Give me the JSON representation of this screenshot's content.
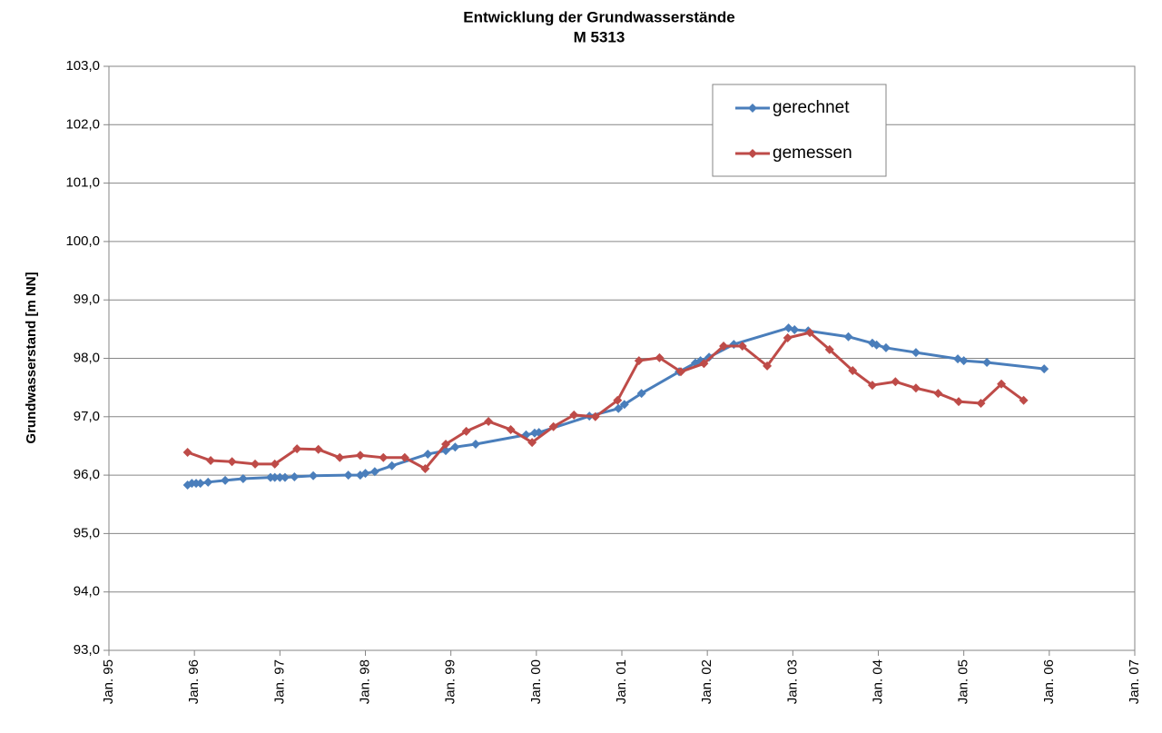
{
  "chart_data": {
    "type": "line",
    "title": "Entwicklung der Grundwasserstände",
    "subtitle": "M 5313",
    "y_label": "Grundwasserstand [m NN]",
    "xlim": [
      1995,
      2007
    ],
    "ylim": [
      93,
      103
    ],
    "grid": true,
    "legend": "upper-right",
    "yticks": [
      {
        "value": 93,
        "label": "93,0"
      },
      {
        "value": 94,
        "label": "94,0"
      },
      {
        "value": 95,
        "label": "95,0"
      },
      {
        "value": 96,
        "label": "96,0"
      },
      {
        "value": 97,
        "label": "97,0"
      },
      {
        "value": 98,
        "label": "98,0"
      },
      {
        "value": 99,
        "label": "99,0"
      },
      {
        "value": 100,
        "label": "100,0"
      },
      {
        "value": 101,
        "label": "101,0"
      },
      {
        "value": 102,
        "label": "102,0"
      },
      {
        "value": 103,
        "label": "103,0"
      }
    ],
    "xticks": [
      {
        "value": 1995,
        "label": "Jan. 95"
      },
      {
        "value": 1996,
        "label": "Jan. 96"
      },
      {
        "value": 1997,
        "label": "Jan. 97"
      },
      {
        "value": 1998,
        "label": "Jan. 98"
      },
      {
        "value": 1999,
        "label": "Jan. 99"
      },
      {
        "value": 2000,
        "label": "Jan. 00"
      },
      {
        "value": 2001,
        "label": "Jan. 01"
      },
      {
        "value": 2002,
        "label": "Jan. 02"
      },
      {
        "value": 2003,
        "label": "Jan. 03"
      },
      {
        "value": 2004,
        "label": "Jan. 04"
      },
      {
        "value": 2005,
        "label": "Jan. 05"
      },
      {
        "value": 2006,
        "label": "Jan. 06"
      },
      {
        "value": 2007,
        "label": "Jan. 07"
      }
    ],
    "series": [
      {
        "name": "gerechnet",
        "color": "#4a7ebb",
        "x": [
          1995.92,
          1995.97,
          1996.02,
          1996.07,
          1996.16,
          1996.36,
          1996.57,
          1996.89,
          1996.94,
          1997.0,
          1997.06,
          1997.17,
          1997.39,
          1997.8,
          1997.94,
          1998.0,
          1998.11,
          1998.31,
          1998.73,
          1998.94,
          1999.05,
          1999.29,
          1999.88,
          1999.98,
          2000.03,
          2000.62,
          2000.96,
          2001.03,
          2001.23,
          2001.67,
          2001.86,
          2001.92,
          2002.02,
          2002.31,
          2002.95,
          2003.02,
          2003.18,
          2003.65,
          2003.93,
          2003.98,
          2004.09,
          2004.44,
          2004.93,
          2005.0,
          2005.27,
          2005.94
        ],
        "values": [
          95.83,
          95.86,
          95.86,
          95.86,
          95.88,
          95.91,
          95.94,
          95.96,
          95.96,
          95.96,
          95.96,
          95.97,
          95.99,
          96.0,
          96.0,
          96.03,
          96.06,
          96.16,
          96.36,
          96.42,
          96.48,
          96.53,
          96.69,
          96.72,
          96.73,
          97.01,
          97.14,
          97.21,
          97.4,
          97.77,
          97.92,
          97.96,
          98.02,
          98.24,
          98.52,
          98.49,
          98.47,
          98.37,
          98.26,
          98.23,
          98.18,
          98.1,
          97.99,
          97.96,
          97.93,
          97.82
        ]
      },
      {
        "name": "gemessen",
        "color": "#be4b48",
        "x": [
          1995.92,
          1996.19,
          1996.44,
          1996.71,
          1996.94,
          1997.2,
          1997.45,
          1997.7,
          1997.94,
          1998.21,
          1998.46,
          1998.7,
          1998.94,
          1999.18,
          1999.44,
          1999.7,
          1999.95,
          2000.2,
          2000.44,
          2000.69,
          2000.95,
          2001.2,
          2001.44,
          2001.69,
          2001.96,
          2002.19,
          2002.41,
          2002.7,
          2002.94,
          2003.2,
          2003.43,
          2003.7,
          2003.93,
          2004.2,
          2004.44,
          2004.7,
          2004.94,
          2005.2,
          2005.44,
          2005.7
        ],
        "values": [
          96.39,
          96.25,
          96.23,
          96.19,
          96.19,
          96.45,
          96.44,
          96.3,
          96.34,
          96.3,
          96.3,
          96.11,
          96.53,
          96.75,
          96.92,
          96.78,
          96.56,
          96.83,
          97.03,
          97.0,
          97.28,
          97.96,
          98.01,
          97.77,
          97.91,
          98.21,
          98.21,
          97.87,
          98.35,
          98.44,
          98.15,
          97.79,
          97.54,
          97.6,
          97.49,
          97.4,
          97.26,
          97.23,
          97.56,
          97.28
        ]
      }
    ]
  }
}
